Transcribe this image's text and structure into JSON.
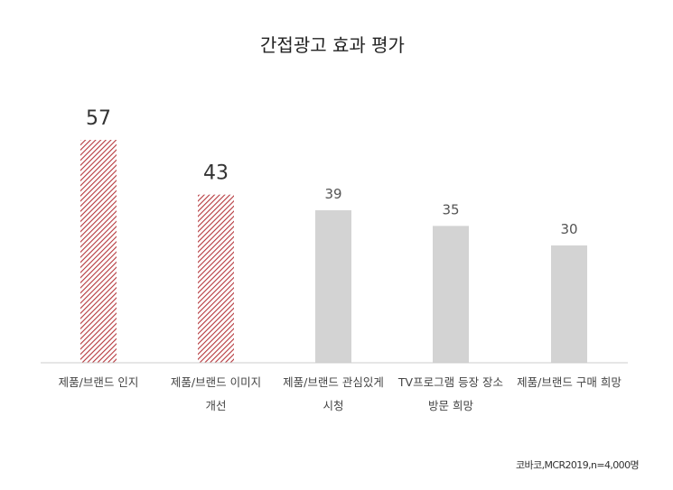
{
  "chart_data": {
    "type": "bar",
    "title": "간접광고 효과 평가",
    "categories": [
      [
        "제품/브랜드 인지"
      ],
      [
        "제품/브랜드 이미지",
        "개선"
      ],
      [
        "제품/브랜드 관심있게",
        "시청"
      ],
      [
        "TV프로그램 등장 장소",
        "방문 희망"
      ],
      [
        "제품/브랜드 구매 희망"
      ]
    ],
    "values": [
      57,
      43,
      39,
      35,
      30
    ],
    "value_labels": [
      "57",
      "43",
      "39",
      "35",
      "30"
    ],
    "highlighted": [
      true,
      true,
      false,
      false,
      false
    ],
    "ylim": [
      0,
      60
    ],
    "grid": false,
    "legend": "none",
    "xlabel": "",
    "ylabel": "",
    "source": "코바코,MCR2019,n=4,000명"
  },
  "colors": {
    "highlight_hatch": "#b5373c",
    "normal_bar": "#d3d3d3",
    "axis": "#cccccc"
  }
}
